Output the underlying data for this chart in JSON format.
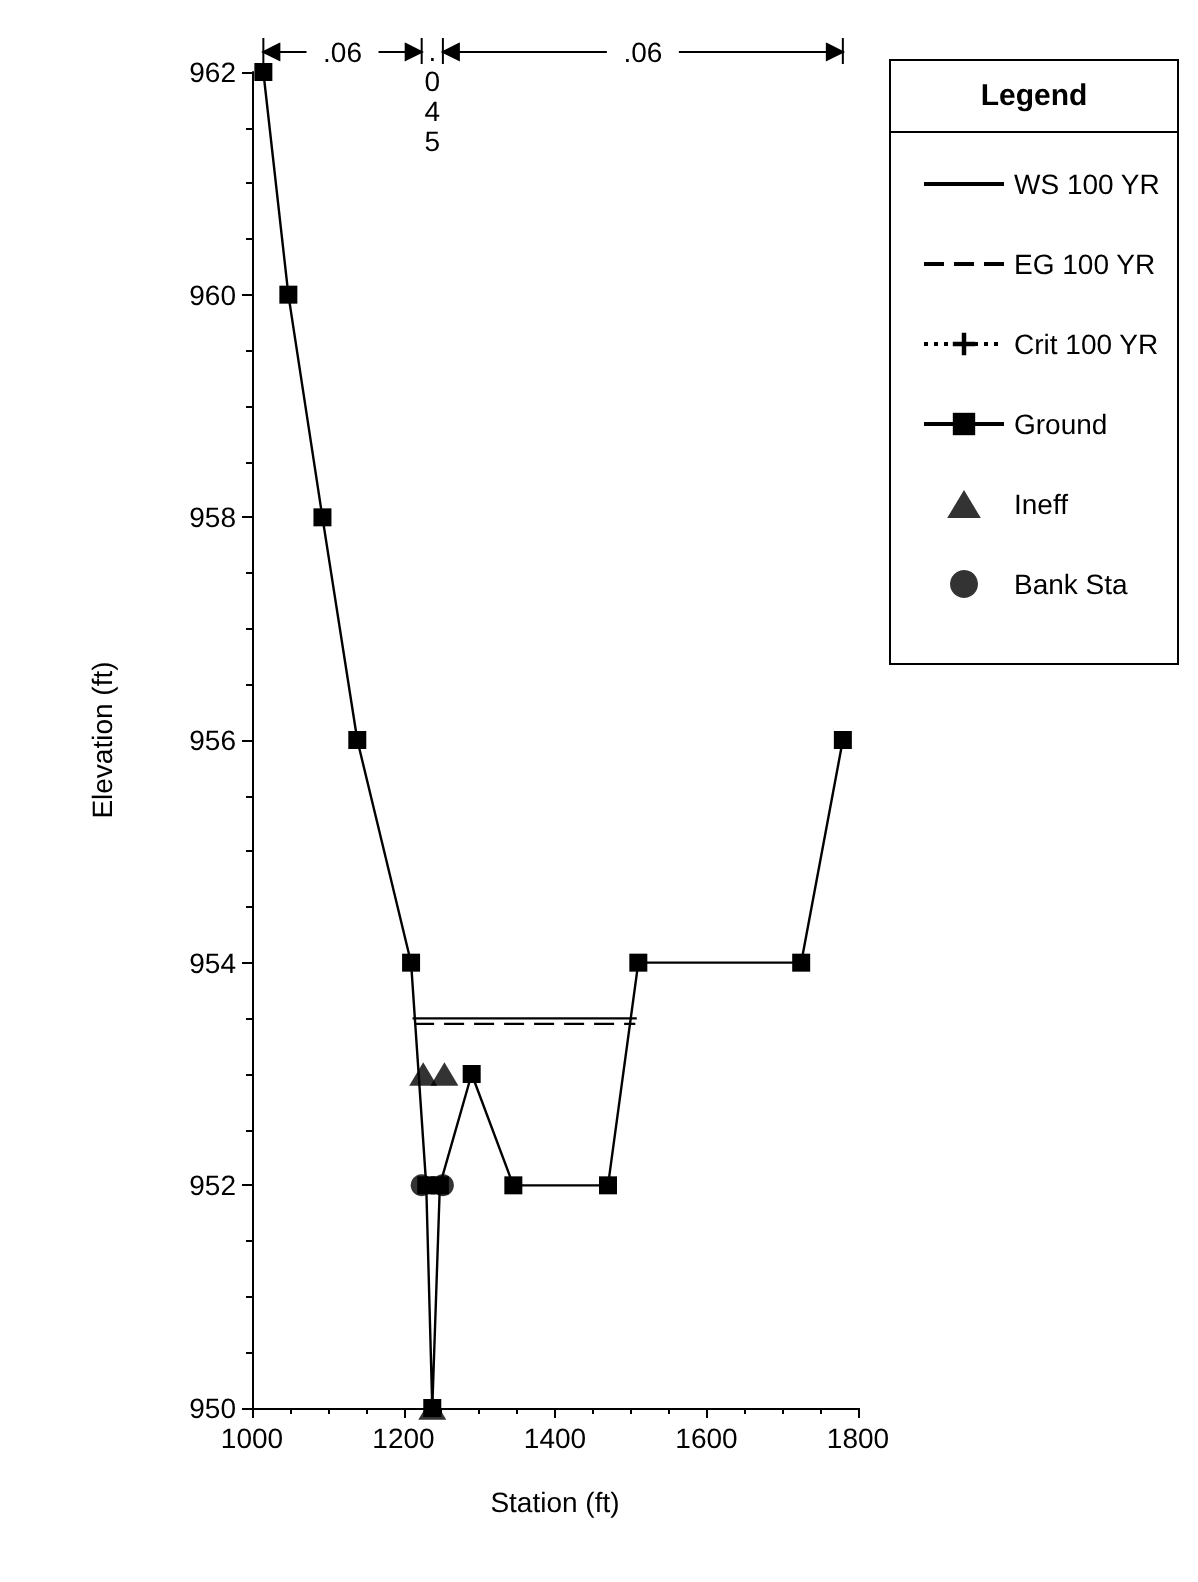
{
  "chart_data": {
    "type": "line",
    "xlabel": "Station (ft)",
    "ylabel": "Elevation (ft)",
    "legend_title": "Legend",
    "legend": "right",
    "grid": false,
    "xlim": [
      1000,
      1800
    ],
    "xticks": [
      1000,
      1200,
      1400,
      1600,
      1800
    ],
    "ylim": [
      950,
      962
    ],
    "yticks": [
      950,
      952,
      954,
      956,
      958,
      960,
      962
    ],
    "annotations": [
      ".06",
      ".045",
      ".06"
    ],
    "series": [
      {
        "name": "WS 100 YR",
        "color": "#000000",
        "line_style": "solid",
        "marker": "none",
        "x": [
          1212,
          1508
        ],
        "values": [
          953.5,
          953.5
        ]
      },
      {
        "name": "EG 100 YR",
        "color": "#000000",
        "line_style": "dashed",
        "marker": "none",
        "x": [
          1214,
          1506
        ],
        "values": [
          953.45,
          953.45
        ]
      },
      {
        "name": "Crit 100 YR",
        "color": "#000000",
        "line_style": "dotted",
        "marker": "cross"
      },
      {
        "name": "Ground",
        "color": "#000000",
        "line_style": "solid",
        "marker": "square",
        "x": [
          1015,
          1048,
          1093,
          1139,
          1210,
          1230,
          1238,
          1248,
          1290,
          1345,
          1470,
          1510,
          1725,
          1780
        ],
        "values": [
          962,
          960,
          958,
          956,
          954,
          952,
          950,
          952,
          953,
          952,
          952,
          954,
          954,
          956
        ]
      },
      {
        "name": "Ineff",
        "type": "scatter",
        "color": "#000000",
        "marker": "triangle",
        "x": [
          1226,
          1254,
          1238
        ],
        "values": [
          953,
          953,
          950
        ]
      },
      {
        "name": "Bank Sta",
        "type": "scatter",
        "color": "#000000",
        "marker": "circle",
        "x": [
          1224,
          1252
        ],
        "values": [
          952,
          952
        ]
      }
    ]
  }
}
